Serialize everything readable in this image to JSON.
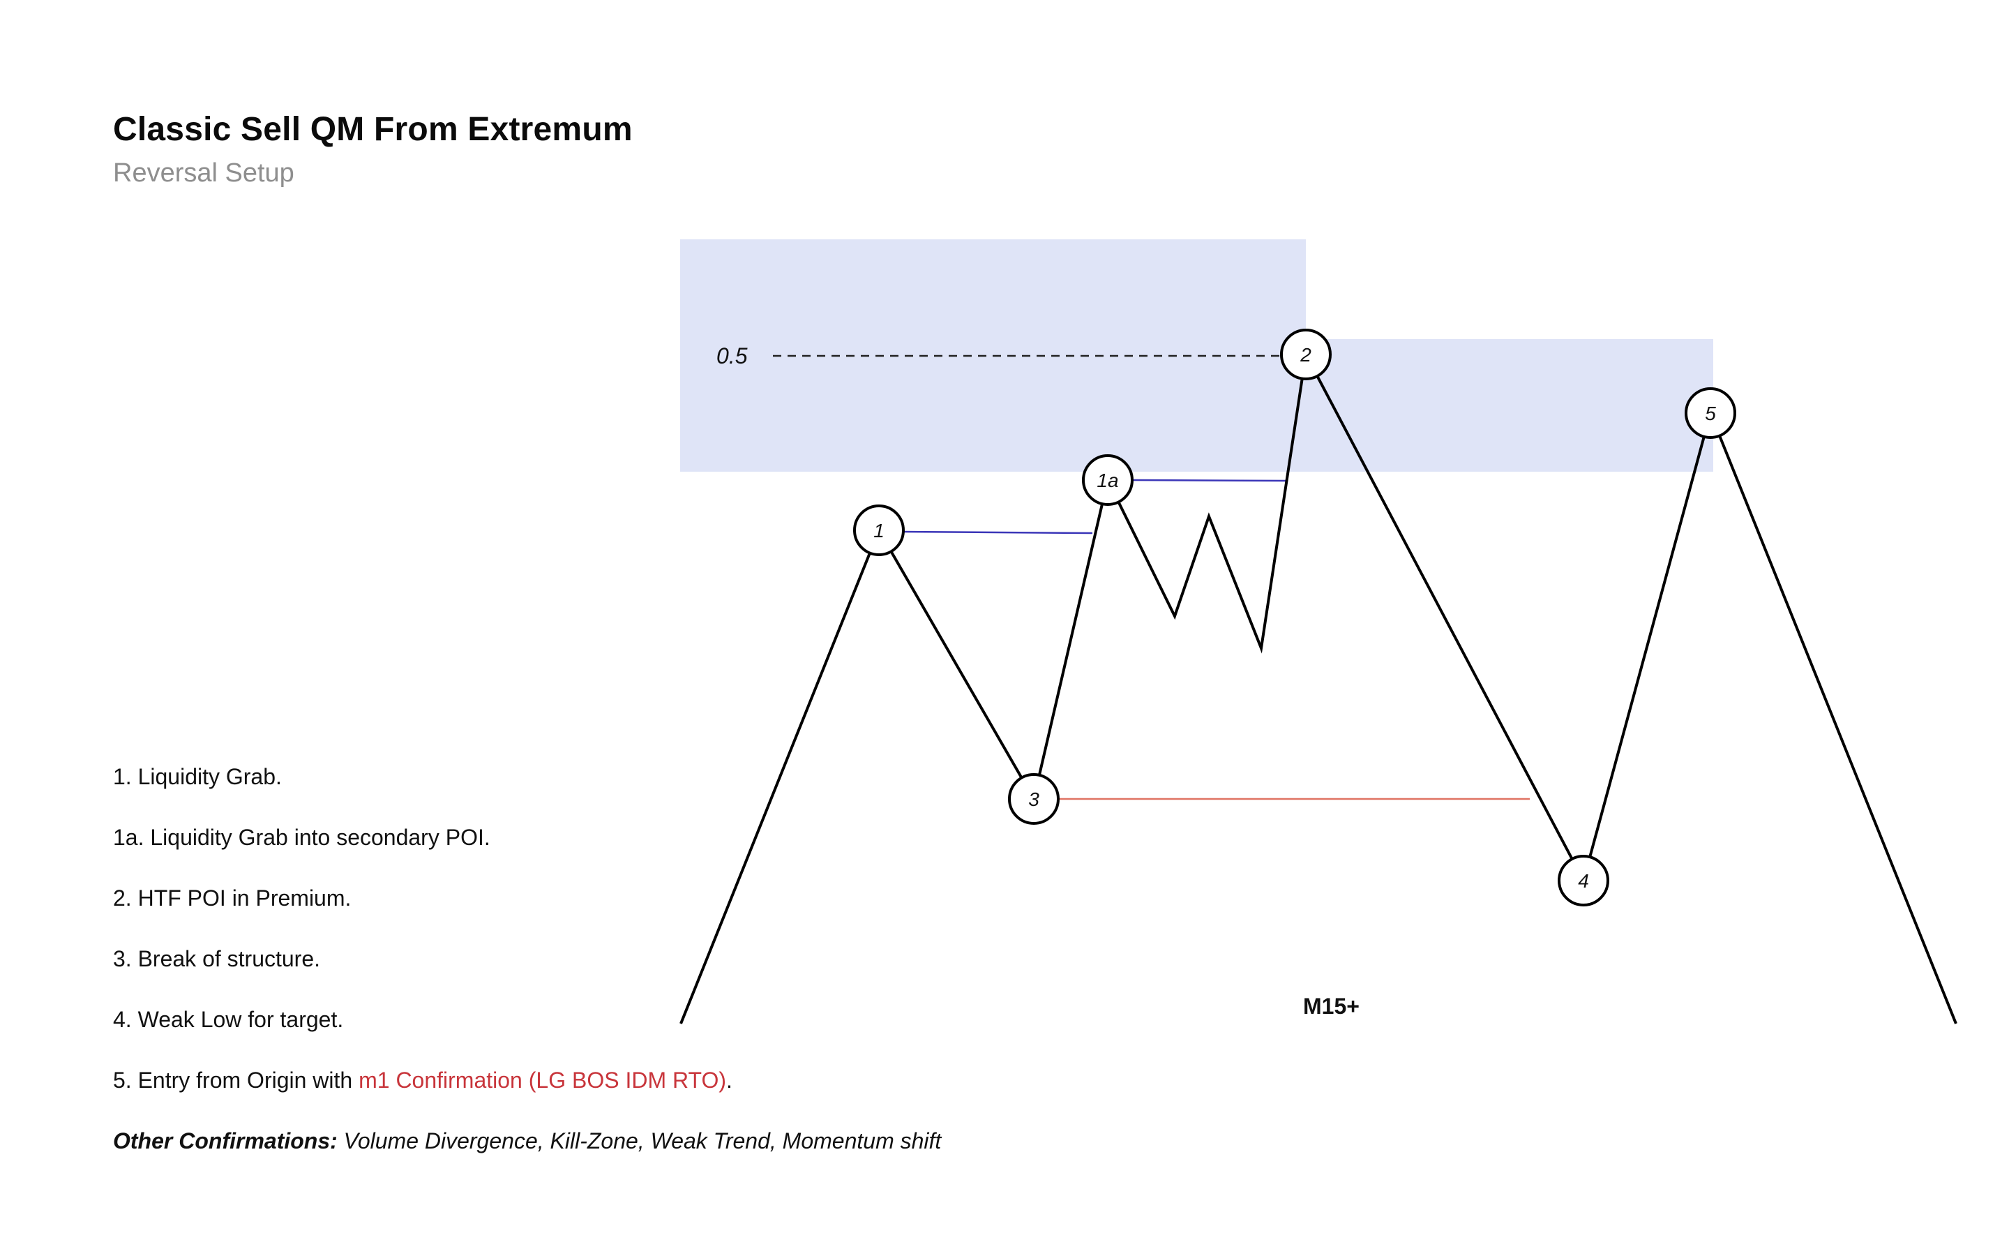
{
  "header": {
    "title": "Classic Sell QM From Extremum",
    "subtitle": "Reversal Setup"
  },
  "diagram": {
    "fib_level": "0.5",
    "timeframe": "M15+",
    "nodes": [
      {
        "id": "node-1",
        "label": "1"
      },
      {
        "id": "node-1a",
        "label": "1a"
      },
      {
        "id": "node-2",
        "label": "2"
      },
      {
        "id": "node-3",
        "label": "3"
      },
      {
        "id": "node-4",
        "label": "4"
      },
      {
        "id": "node-5",
        "label": "5"
      }
    ],
    "colors": {
      "zone_fill": "#dfe4f7",
      "liquidity_line": "#3b36b8",
      "bos_line": "#e07363",
      "price_line": "#000000"
    }
  },
  "notes": {
    "n1": "1. Liquidity Grab.",
    "n1a": "1a. Liquidity Grab into secondary POI.",
    "n2": "2. HTF POI in Premium.",
    "n3": "3. Break of structure.",
    "n4": "4. Weak Low for target.",
    "n5_prefix": "5. Entry from Origin with ",
    "n5_highlight": "m1 Confirmation (LG BOS IDM RTO)",
    "n5_suffix": ".",
    "other_label": "Other Confirmations:",
    "other_text": " Volume Divergence, Kill-Zone, Weak Trend, Momentum shift"
  }
}
